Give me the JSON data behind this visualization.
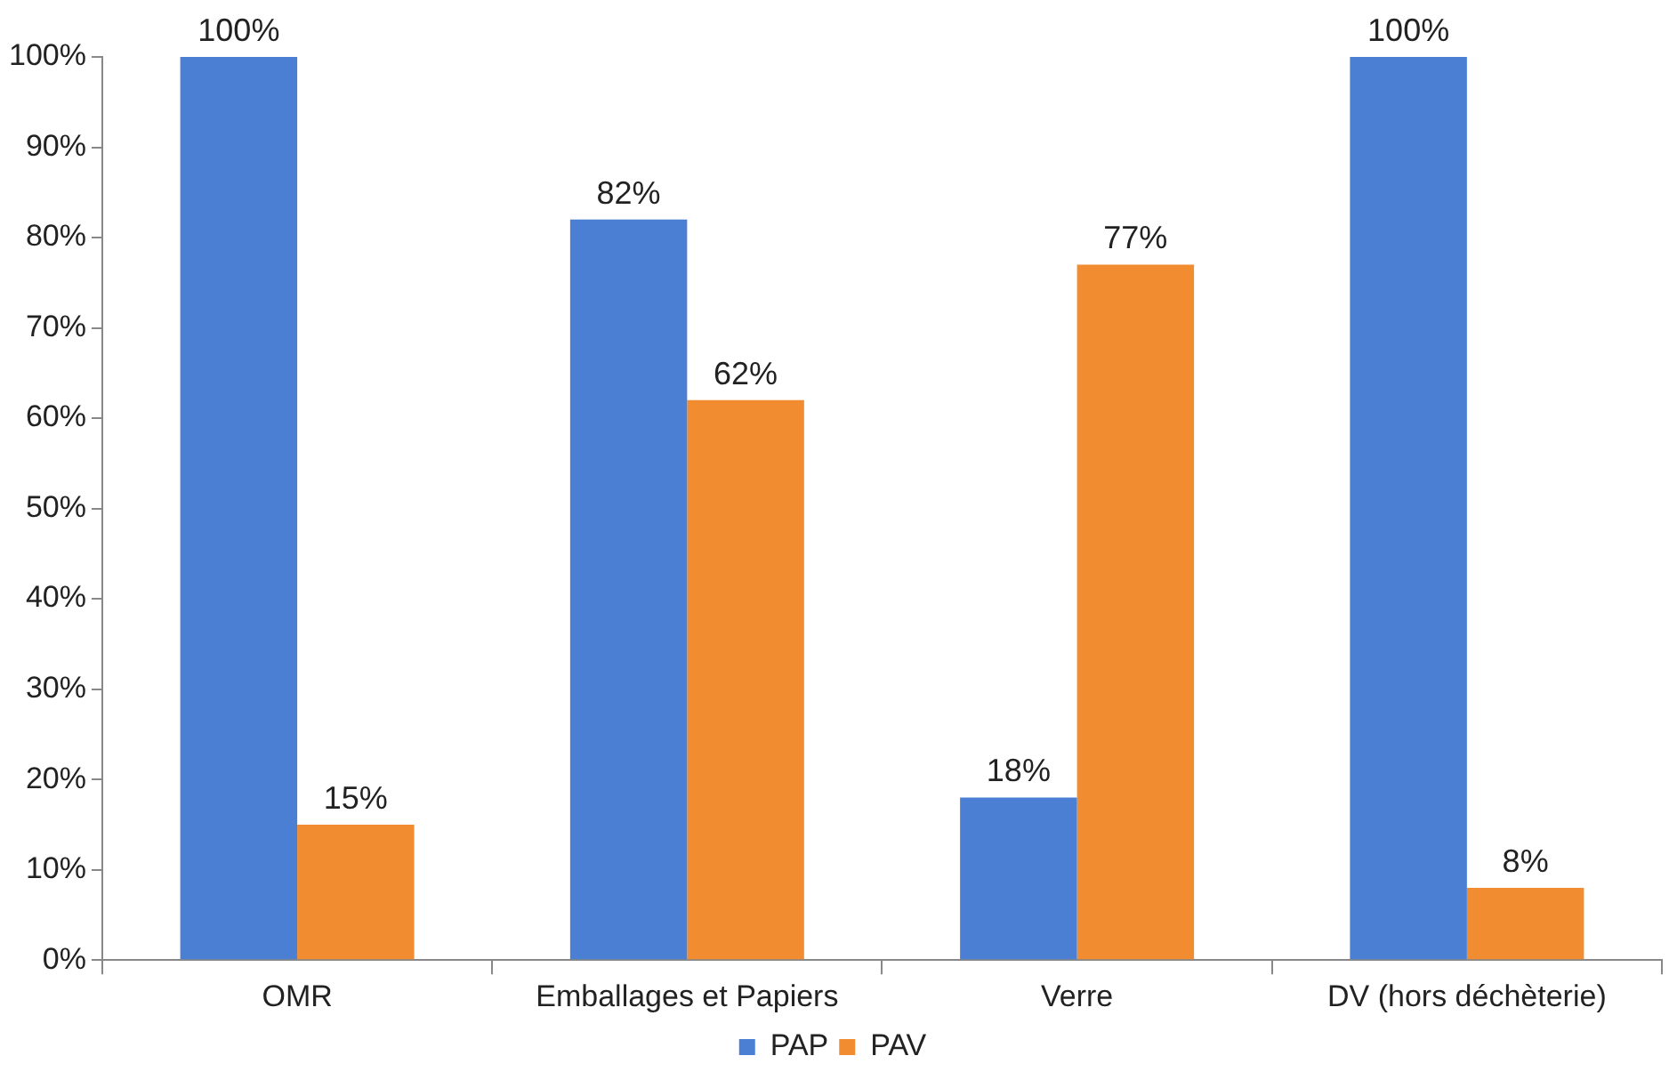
{
  "chart_data": {
    "type": "bar",
    "categories": [
      "OMR",
      "Emballages et Papiers",
      "Verre",
      "DV (hors déchèterie)"
    ],
    "series": [
      {
        "name": "PAP",
        "color": "#4a7fd4",
        "values": [
          100,
          82,
          18,
          100
        ],
        "value_labels": [
          "100%",
          "82%",
          "18%",
          "100%"
        ]
      },
      {
        "name": "PAV",
        "color": "#f28c30",
        "values": [
          15,
          62,
          77,
          8
        ],
        "value_labels": [
          "15%",
          "62%",
          "77%",
          "8%"
        ]
      }
    ],
    "ylim": [
      0,
      100
    ],
    "yticks": [
      {
        "value": 0,
        "label": "0%"
      },
      {
        "value": 10,
        "label": "10%"
      },
      {
        "value": 20,
        "label": "20%"
      },
      {
        "value": 30,
        "label": "30%"
      },
      {
        "value": 40,
        "label": "40%"
      },
      {
        "value": 50,
        "label": "50%"
      },
      {
        "value": 60,
        "label": "60%"
      },
      {
        "value": 70,
        "label": "70%"
      },
      {
        "value": 80,
        "label": "80%"
      },
      {
        "value": 90,
        "label": "90%"
      },
      {
        "value": 100,
        "label": "100%"
      }
    ],
    "grid": false,
    "legend": "bottom"
  }
}
